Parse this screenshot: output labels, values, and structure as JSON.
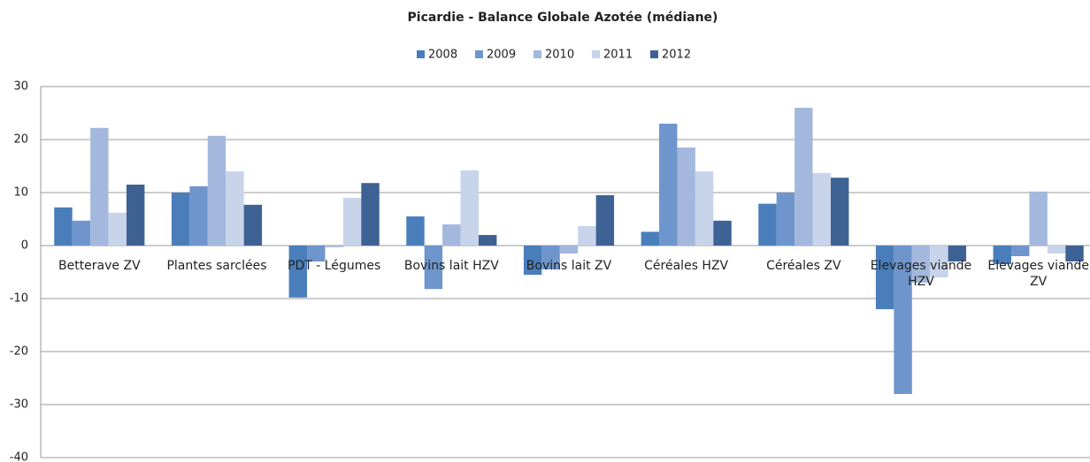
{
  "chart_data": {
    "type": "bar",
    "title": "Picardie - Balance Globale Azotée (médiane)",
    "categories": [
      "Betterave ZV",
      "Plantes sarclées",
      "PDT - Légumes",
      "Bovins lait HZV",
      "Bovins lait ZV",
      "Céréales  HZV",
      "Céréales ZV",
      "Elevages viande HZV",
      "Elevages viande ZV"
    ],
    "series": [
      {
        "name": "2008",
        "color": "#4a7ebb",
        "values": [
          7.2,
          10.0,
          -9.8,
          5.5,
          -5.5,
          2.6,
          7.9,
          -12.0,
          -3.5
        ]
      },
      {
        "name": "2009",
        "color": "#6f95cd",
        "values": [
          4.7,
          11.2,
          -3.0,
          -8.2,
          -4.5,
          23.0,
          10.0,
          -28.0,
          -2.0
        ]
      },
      {
        "name": "2010",
        "color": "#a3b8dc",
        "values": [
          22.2,
          20.7,
          -0.3,
          4.0,
          -1.5,
          18.5,
          26.0,
          -7.0,
          10.2
        ]
      },
      {
        "name": "2011",
        "color": "#c8d4ea",
        "values": [
          6.2,
          14.0,
          9.0,
          14.2,
          3.7,
          14.0,
          13.7,
          -6.0,
          -1.5
        ]
      },
      {
        "name": "2012",
        "color": "#3f6294",
        "values": [
          11.5,
          7.7,
          11.8,
          2.0,
          9.5,
          4.7,
          12.8,
          -3.0,
          -3.0
        ]
      }
    ],
    "ylim": [
      -40,
      30
    ],
    "yticks": [
      -40,
      -30,
      -20,
      -10,
      0,
      10,
      20,
      30
    ],
    "grid": true,
    "legend": "top"
  }
}
